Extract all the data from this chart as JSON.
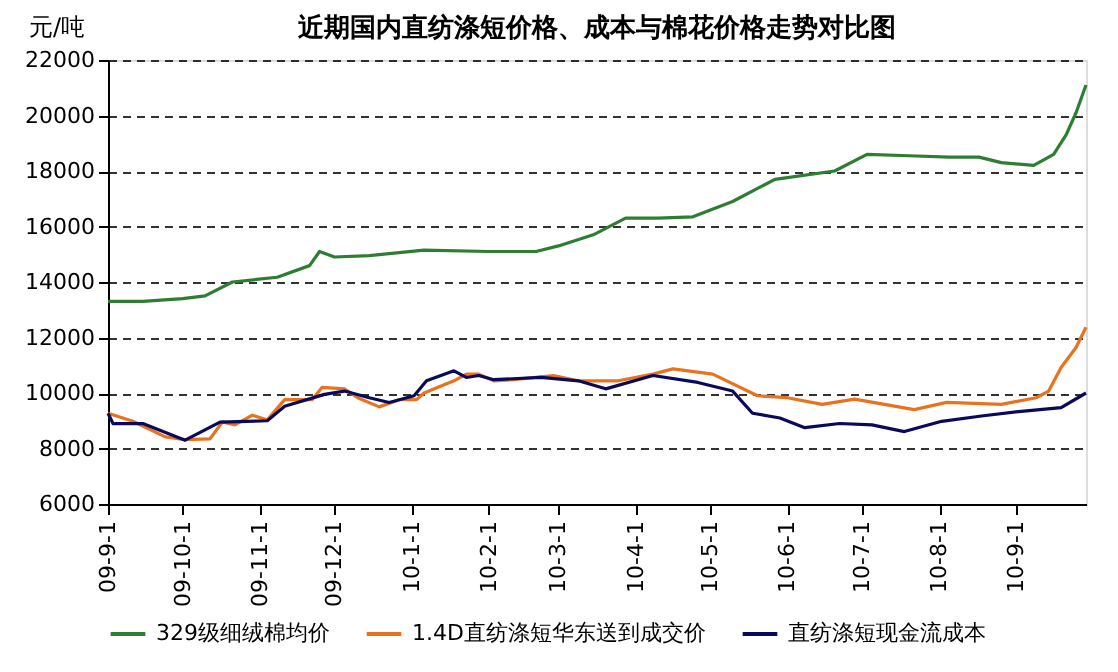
{
  "chart_data": {
    "type": "line",
    "title": "近期国内直纺涤短价格、成本与棉花价格走势对比图",
    "ylabel": "元/吨",
    "xlim": [
      "2009-09-01",
      "2010-09-29"
    ],
    "xticks": [
      {
        "value": "2009-09-01",
        "label": "09-9-1"
      },
      {
        "value": "2009-10-01",
        "label": "09-10-1"
      },
      {
        "value": "2009-11-01",
        "label": "09-11-1"
      },
      {
        "value": "2009-12-01",
        "label": "09-12-1"
      },
      {
        "value": "2010-01-01",
        "label": "10-1-1"
      },
      {
        "value": "2010-02-01",
        "label": "10-2-1"
      },
      {
        "value": "2010-03-01",
        "label": "10-3-1"
      },
      {
        "value": "2010-04-01",
        "label": "10-4-1"
      },
      {
        "value": "2010-05-01",
        "label": "10-5-1"
      },
      {
        "value": "2010-06-01",
        "label": "10-6-1"
      },
      {
        "value": "2010-07-01",
        "label": "10-7-1"
      },
      {
        "value": "2010-08-01",
        "label": "10-8-1"
      },
      {
        "value": "2010-09-01",
        "label": "10-9-1"
      }
    ],
    "ylim": [
      6000,
      22000
    ],
    "yticks": [
      6000,
      8000,
      10000,
      12000,
      14000,
      16000,
      18000,
      20000,
      22000
    ],
    "grid": "y",
    "legend": "bottom",
    "marker": "none",
    "line_style": "solid",
    "series": [
      {
        "name": "329级细绒棉均价",
        "color": "#2e7d32",
        "x": [
          "2009-09-01",
          "2009-09-15",
          "2009-10-01",
          "2009-10-10",
          "2009-10-21",
          "2009-11-08",
          "2009-11-21",
          "2009-11-25",
          "2009-12-01",
          "2009-12-15",
          "2010-01-06",
          "2010-02-01",
          "2010-02-20",
          "2010-03-01",
          "2010-03-15",
          "2010-03-28",
          "2010-04-10",
          "2010-04-24",
          "2010-05-10",
          "2010-05-27",
          "2010-06-20",
          "2010-07-03",
          "2010-07-20",
          "2010-08-05",
          "2010-08-17",
          "2010-08-26",
          "2010-09-08",
          "2010-09-16",
          "2010-09-21",
          "2010-09-25",
          "2010-09-29"
        ],
        "values": [
          13300,
          13300,
          13400,
          13500,
          14000,
          14170,
          14590,
          15100,
          14900,
          14950,
          15150,
          15100,
          15100,
          15300,
          15700,
          16300,
          16300,
          16350,
          16900,
          17700,
          18000,
          18600,
          18550,
          18500,
          18500,
          18300,
          18200,
          18600,
          19300,
          20100,
          21100
        ]
      },
      {
        "name": "1.4D直纺涤短华东送到成交价",
        "color": "#e8731e",
        "x": [
          "2009-09-01",
          "2009-09-11",
          "2009-09-24",
          "2009-10-02",
          "2009-10-12",
          "2009-10-17",
          "2009-10-22",
          "2009-10-29",
          "2009-11-04",
          "2009-11-11",
          "2009-11-22",
          "2009-11-26",
          "2009-12-05",
          "2009-12-11",
          "2009-12-19",
          "2009-12-27",
          "2010-01-03",
          "2010-01-06",
          "2010-01-18",
          "2010-01-23",
          "2010-01-28",
          "2010-02-03",
          "2010-02-11",
          "2010-02-27",
          "2010-03-09",
          "2010-03-25",
          "2010-04-08",
          "2010-04-16",
          "2010-05-02",
          "2010-05-20",
          "2010-06-01",
          "2010-06-15",
          "2010-06-28",
          "2010-07-22",
          "2010-08-04",
          "2010-08-26",
          "2010-09-09",
          "2010-09-14",
          "2010-09-19",
          "2010-09-25",
          "2010-09-29"
        ],
        "values": [
          9270,
          8980,
          8420,
          8320,
          8350,
          8960,
          8850,
          9200,
          9030,
          9760,
          9760,
          10200,
          10150,
          9800,
          9500,
          9760,
          9760,
          10000,
          10440,
          10680,
          10680,
          10440,
          10480,
          10630,
          10440,
          10440,
          10680,
          10870,
          10680,
          9900,
          9830,
          9590,
          9780,
          9400,
          9660,
          9590,
          9830,
          10070,
          10920,
          11640,
          12370
        ]
      },
      {
        "name": "直纺涤短现金流成本",
        "color": "#0a0a5a",
        "x": [
          "2009-09-01",
          "2009-09-03",
          "2009-09-15",
          "2009-10-02",
          "2009-10-16",
          "2009-11-04",
          "2009-11-11",
          "2009-11-27",
          "2009-12-05",
          "2009-12-15",
          "2009-12-23",
          "2010-01-02",
          "2010-01-07",
          "2010-01-18",
          "2010-01-23",
          "2010-01-28",
          "2010-02-03",
          "2010-02-22",
          "2010-03-09",
          "2010-03-20",
          "2010-04-08",
          "2010-04-26",
          "2010-05-10",
          "2010-05-18",
          "2010-05-29",
          "2010-06-08",
          "2010-06-22",
          "2010-07-05",
          "2010-07-18",
          "2010-08-02",
          "2010-08-18",
          "2010-09-03",
          "2010-09-19",
          "2010-09-29"
        ],
        "values": [
          9270,
          8900,
          8900,
          8300,
          8950,
          9000,
          9520,
          9950,
          10070,
          9830,
          9660,
          9900,
          10440,
          10800,
          10560,
          10630,
          10480,
          10560,
          10440,
          10150,
          10630,
          10380,
          10070,
          9270,
          9100,
          8750,
          8900,
          8850,
          8610,
          8980,
          9170,
          9340,
          9470,
          10000
        ]
      }
    ]
  }
}
